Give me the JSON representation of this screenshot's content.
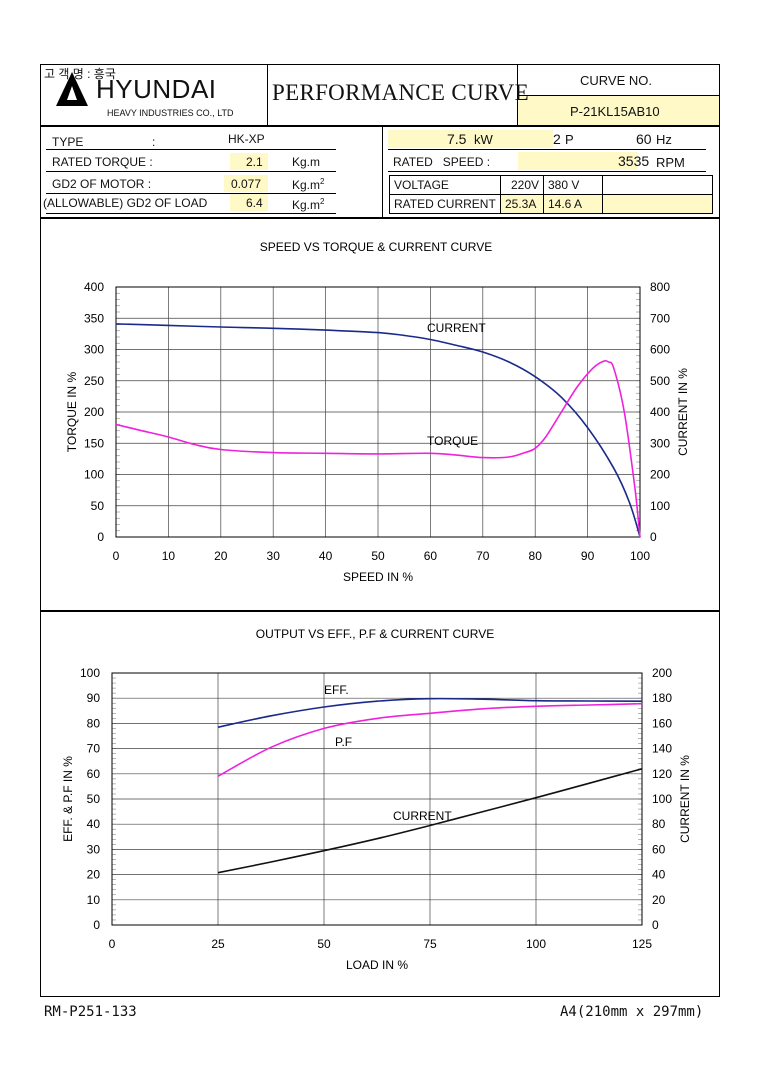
{
  "header": {
    "korean_label": "고 객 명 : 흥국",
    "brand": "HYUNDAI",
    "brand_sub": "HEAVY INDUSTRIES CO., LTD",
    "doc_title": "PERFORMANCE CURVE",
    "curve_no_label": "CURVE NO.",
    "curve_no": "P-21KL15AB10"
  },
  "specs": {
    "type_label": "TYPE",
    "type_colon": ":",
    "type_value": "HK-XP",
    "rated_torque_label": "RATED TORQUE :",
    "rated_torque_value": "2.1",
    "rated_torque_unit": "Kg.m",
    "gd2_motor_label": "GD2 OF MOTOR :",
    "gd2_motor_value": "0.077",
    "gd2_motor_unit": "Kg.m",
    "gd2_load_label": "(ALLOWABLE) GD2 OF LOAD",
    "gd2_load_value": "6.4",
    "gd2_load_unit": "Kg.m",
    "unit_sup": "2",
    "power_value": "7.5",
    "power_unit": "kW",
    "poles_value": "2",
    "poles_unit": "P",
    "freq_value": "60",
    "freq_unit": "Hz",
    "rated_speed_label": "RATED   SPEED :",
    "rated_speed_value": "3535",
    "rated_speed_unit": "RPM",
    "voltage_label": "VOLTAGE",
    "voltage_1": "220V",
    "voltage_2": "380 V",
    "voltage_3": "",
    "rated_current_label": "RATED CURRENT",
    "current_1": "25.3A",
    "current_2": "14.6 A",
    "current_3": ""
  },
  "footer": {
    "left": "RM-P251-133",
    "right": "A4(210mm x 297mm)"
  },
  "chart_data": [
    {
      "type": "line",
      "title": "SPEED VS TORQUE & CURRENT CURVE",
      "xlabel": "SPEED IN %",
      "ylabel": "TORQUE IN %",
      "y2label": "CURRENT IN %",
      "xlim": [
        0,
        100
      ],
      "ylim": [
        0,
        400
      ],
      "y2lim": [
        0,
        800
      ],
      "xticks": [
        0,
        10,
        20,
        30,
        40,
        50,
        60,
        70,
        80,
        90,
        100
      ],
      "yticks": [
        0,
        50,
        100,
        150,
        200,
        250,
        300,
        350,
        400
      ],
      "y2ticks": [
        0,
        100,
        200,
        300,
        400,
        500,
        600,
        700,
        800
      ],
      "grid": true,
      "series": [
        {
          "name": "CURRENT",
          "axis": "y2",
          "color": "#1a2a8a",
          "x": [
            0,
            10,
            20,
            30,
            40,
            50,
            55,
            60,
            65,
            70,
            75,
            80,
            85,
            90,
            95,
            98,
            100
          ],
          "values": [
            682,
            677,
            672,
            668,
            662,
            654,
            645,
            632,
            613,
            592,
            560,
            513,
            447,
            350,
            220,
            110,
            0
          ]
        },
        {
          "name": "TORQUE",
          "axis": "y",
          "color": "#ee22dd",
          "x": [
            0,
            5,
            10,
            15,
            20,
            30,
            40,
            50,
            60,
            65,
            70,
            75,
            78,
            80,
            82,
            85,
            88,
            91,
            93,
            94,
            95,
            97,
            99,
            100
          ],
          "values": [
            180,
            170,
            160,
            148,
            140,
            135,
            134,
            133,
            134,
            131,
            127,
            128,
            135,
            142,
            160,
            200,
            240,
            270,
            281,
            280,
            270,
            200,
            80,
            0
          ]
        }
      ]
    },
    {
      "type": "line",
      "title": "OUTPUT VS EFF., P.F & CURRENT CURVE",
      "xlabel": "LOAD IN %",
      "ylabel": "EFF. & P.F IN %",
      "y2label": "CURRENT IN %",
      "xlim": [
        0,
        125
      ],
      "ylim": [
        0,
        100
      ],
      "y2lim": [
        0,
        200
      ],
      "xticks": [
        0,
        25,
        50,
        75,
        100,
        125
      ],
      "yticks": [
        0,
        10,
        20,
        30,
        40,
        50,
        60,
        70,
        80,
        90,
        100
      ],
      "y2ticks": [
        0,
        20,
        40,
        60,
        80,
        100,
        120,
        140,
        160,
        180,
        200
      ],
      "grid": true,
      "series": [
        {
          "name": "EFF.",
          "axis": "y",
          "color": "#1a2a8a",
          "x": [
            25,
            37.5,
            50,
            62.5,
            75,
            87.5,
            100,
            112.5,
            125
          ],
          "values": [
            78.5,
            83,
            86.5,
            88.8,
            89.8,
            89.6,
            89,
            88.9,
            88.8
          ]
        },
        {
          "name": "P.F",
          "axis": "y",
          "color": "#ee22dd",
          "x": [
            25,
            37.5,
            50,
            62.5,
            75,
            87.5,
            100,
            112.5,
            125
          ],
          "values": [
            59,
            70.5,
            78,
            82,
            84,
            85.8,
            86.8,
            87.3,
            87.8
          ]
        },
        {
          "name": "CURRENT",
          "axis": "y2",
          "color": "#111111",
          "x": [
            25,
            37.5,
            50,
            62.5,
            75,
            87.5,
            100,
            112.5,
            125
          ],
          "values": [
            41.5,
            50,
            59,
            68.5,
            79,
            90,
            101,
            112.5,
            124
          ]
        }
      ]
    }
  ]
}
